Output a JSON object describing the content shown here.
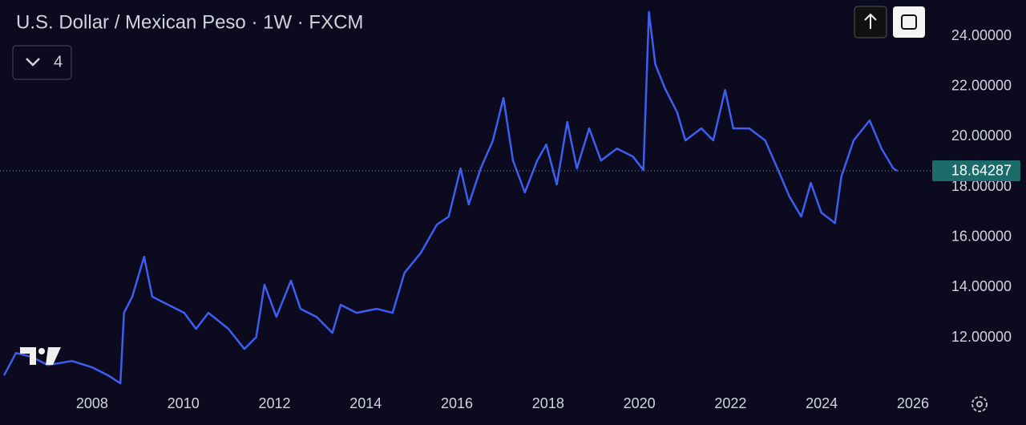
{
  "chart_data": {
    "type": "line",
    "title": "U.S. Dollar / Mexican Peso · 1W · FXCM",
    "color": "#3d5ef0",
    "grid": false,
    "last_price": 18.64287,
    "last_price_color": "#1c6b6b",
    "xlim": [
      2005.98,
      2026.37
    ],
    "xticks": [
      2008,
      2010,
      2012,
      2014,
      2016,
      2018,
      2020,
      2022,
      2024,
      2026
    ],
    "ylim": [
      10.12,
      25.44
    ],
    "yticks": [
      {
        "value": 12,
        "label": "12.00000"
      },
      {
        "value": 14,
        "label": "14.00000"
      },
      {
        "value": 16,
        "label": "16.00000"
      },
      {
        "value": 18,
        "label": "18.00000"
      },
      {
        "value": 20,
        "label": "20.00000"
      },
      {
        "value": 22,
        "label": "22.00000"
      },
      {
        "value": 24,
        "label": "24.00000"
      }
    ],
    "x": [
      2006.07,
      2006.33,
      2006.68,
      2007.03,
      2007.56,
      2008.0,
      2008.35,
      2008.62,
      2008.7,
      2008.88,
      2009.14,
      2009.32,
      2009.67,
      2010.02,
      2010.28,
      2010.55,
      2010.99,
      2011.34,
      2011.6,
      2011.78,
      2012.04,
      2012.36,
      2012.57,
      2012.92,
      2013.27,
      2013.45,
      2013.8,
      2014.24,
      2014.59,
      2014.85,
      2015.21,
      2015.56,
      2015.82,
      2016.08,
      2016.26,
      2016.52,
      2016.79,
      2017.02,
      2017.23,
      2017.49,
      2017.76,
      2017.96,
      2018.19,
      2018.42,
      2018.63,
      2018.9,
      2019.16,
      2019.51,
      2019.86,
      2020.09,
      2020.21,
      2020.35,
      2020.56,
      2020.83,
      2021.01,
      2021.36,
      2021.62,
      2021.88,
      2022.06,
      2022.41,
      2022.76,
      2023.03,
      2023.29,
      2023.55,
      2023.76,
      2023.99,
      2024.29,
      2024.43,
      2024.7,
      2025.05,
      2025.31,
      2025.57,
      2025.66
    ],
    "values": [
      10.5,
      11.39,
      11.23,
      10.91,
      11.07,
      10.82,
      10.5,
      10.18,
      12.99,
      13.63,
      15.22,
      13.63,
      13.31,
      12.99,
      12.35,
      12.99,
      12.35,
      11.55,
      12.03,
      14.11,
      12.83,
      14.27,
      13.15,
      12.83,
      12.19,
      13.31,
      12.99,
      13.15,
      12.99,
      14.58,
      15.38,
      16.5,
      16.82,
      18.73,
      17.3,
      18.73,
      19.85,
      21.54,
      19.05,
      17.78,
      19.05,
      19.69,
      18.1,
      20.59,
      18.73,
      20.33,
      19.05,
      19.53,
      19.21,
      18.67,
      24.96,
      22.88,
      21.93,
      20.97,
      19.85,
      20.33,
      19.85,
      21.86,
      20.33,
      20.33,
      19.85,
      18.73,
      17.62,
      16.82,
      18.16,
      16.98,
      16.56,
      18.41,
      19.85,
      20.65,
      19.53,
      18.73,
      18.64
    ]
  },
  "toolbar": {
    "indicators_count": 4
  }
}
